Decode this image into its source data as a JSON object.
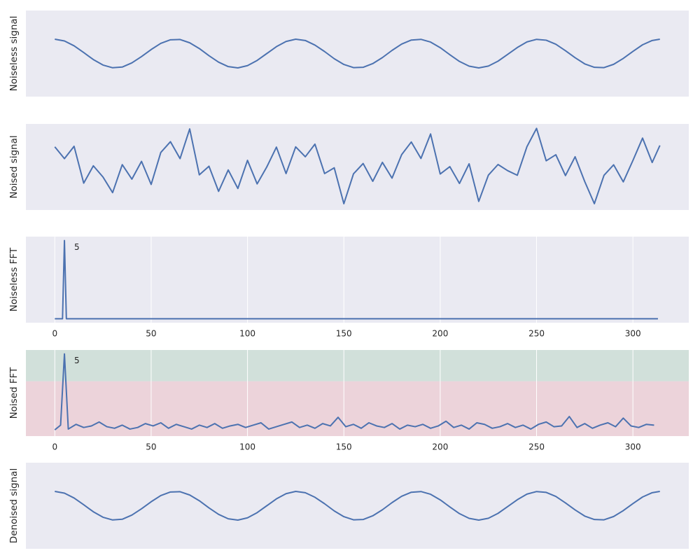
{
  "chart_data": [
    {
      "type": "line",
      "ylabel": "Noiseless signal",
      "color": "#4c72b0",
      "grid": false,
      "xlim": [
        -15,
        329
      ],
      "ylim": [
        -3,
        3
      ],
      "x": [
        0,
        5,
        10,
        15,
        20,
        25,
        30,
        35,
        40,
        45,
        50,
        55,
        60,
        65,
        70,
        75,
        80,
        85,
        90,
        95,
        100,
        105,
        110,
        115,
        120,
        125,
        130,
        135,
        140,
        145,
        150,
        155,
        160,
        165,
        170,
        175,
        180,
        185,
        190,
        195,
        200,
        205,
        210,
        215,
        220,
        225,
        230,
        235,
        240,
        245,
        250,
        255,
        260,
        265,
        270,
        275,
        280,
        285,
        290,
        295,
        300,
        305,
        310,
        314
      ],
      "values": [
        1,
        0.88,
        0.54,
        0.07,
        -0.42,
        -0.8,
        -0.99,
        -0.94,
        -0.65,
        -0.21,
        0.28,
        0.71,
        0.96,
        0.98,
        0.75,
        0.35,
        -0.15,
        -0.6,
        -0.91,
        -1,
        -0.84,
        -0.48,
        0,
        0.48,
        0.84,
        1,
        0.91,
        0.59,
        0.14,
        -0.36,
        -0.76,
        -0.98,
        -0.96,
        -0.7,
        -0.28,
        0.22,
        0.66,
        0.94,
        0.99,
        0.8,
        0.41,
        -0.08,
        -0.55,
        -0.88,
        -1,
        -0.87,
        -0.53,
        -0.06,
        0.42,
        0.81,
        0.99,
        0.93,
        0.65,
        0.2,
        -0.29,
        -0.72,
        -0.96,
        -0.98,
        -0.75,
        -0.34,
        0.15,
        0.61,
        0.91,
        1
      ]
    },
    {
      "type": "line",
      "ylabel": "Noised signal",
      "color": "#4c72b0",
      "grid": false,
      "xlim": [
        -15,
        329
      ],
      "ylim": [
        -3,
        3
      ],
      "x": [
        0,
        5,
        10,
        15,
        20,
        25,
        30,
        35,
        40,
        45,
        50,
        55,
        60,
        65,
        70,
        75,
        80,
        85,
        90,
        95,
        100,
        105,
        110,
        115,
        120,
        125,
        130,
        135,
        140,
        145,
        150,
        155,
        160,
        165,
        170,
        175,
        180,
        185,
        190,
        195,
        200,
        205,
        210,
        215,
        220,
        225,
        230,
        235,
        240,
        245,
        250,
        255,
        260,
        265,
        270,
        275,
        280,
        285,
        290,
        295,
        300,
        305,
        310,
        314
      ],
      "values": [
        1.4,
        0.58,
        1.44,
        -1.13,
        0.08,
        -0.7,
        -1.79,
        0.16,
        -0.85,
        0.39,
        -1.22,
        1.01,
        1.76,
        0.58,
        2.65,
        -0.55,
        0.05,
        -1.7,
        -0.21,
        -1.5,
        0.46,
        -1.18,
        0,
        1.38,
        -0.46,
        1.4,
        0.71,
        1.59,
        -0.46,
        -0.06,
        -2.56,
        -0.48,
        0.24,
        -1,
        0.32,
        -0.78,
        0.86,
        1.74,
        0.59,
        2.3,
        -0.49,
        0.02,
        -1.15,
        0.22,
        -2.4,
        -0.57,
        0.17,
        -0.26,
        -0.58,
        1.41,
        2.69,
        0.43,
        0.85,
        -0.6,
        0.71,
        -1.02,
        -2.56,
        -0.58,
        0.15,
        -1.04,
        0.45,
        2.01,
        0.31,
        1.5
      ]
    },
    {
      "type": "line",
      "ylabel": "Noiseless FFT",
      "color": "#4c72b0",
      "grid": true,
      "annotation": "5",
      "xlim": [
        -15,
        329
      ],
      "ylim": [
        -0.05,
        1.05
      ],
      "xticks": [
        0,
        50,
        100,
        150,
        200,
        250,
        300
      ],
      "x": [
        0,
        4,
        5,
        6,
        313
      ],
      "values": [
        0,
        0,
        1,
        0,
        0
      ]
    },
    {
      "type": "line",
      "ylabel": "Noised FFT",
      "color": "#4c72b0",
      "grid": true,
      "annotation": "5",
      "threshold": 0.65,
      "band_colors": [
        "#d1e0da",
        "#ecd3da"
      ],
      "xlim": [
        -15,
        329
      ],
      "ylim": [
        -0.05,
        1.05
      ],
      "xticks": [
        0,
        50,
        100,
        150,
        200,
        250,
        300
      ],
      "x": [
        0,
        3,
        5,
        7,
        11,
        15,
        19,
        23,
        27,
        31,
        35,
        39,
        43,
        47,
        51,
        55,
        59,
        63,
        67,
        71,
        75,
        79,
        83,
        87,
        91,
        95,
        99,
        103,
        107,
        111,
        115,
        119,
        123,
        127,
        131,
        135,
        139,
        143,
        147,
        151,
        155,
        159,
        163,
        167,
        171,
        175,
        179,
        183,
        187,
        191,
        195,
        199,
        203,
        207,
        211,
        215,
        219,
        223,
        227,
        231,
        235,
        239,
        243,
        247,
        251,
        255,
        259,
        263,
        267,
        271,
        275,
        279,
        283,
        287,
        291,
        295,
        299,
        303,
        307,
        311
      ],
      "values": [
        0.03,
        0.09,
        1,
        0.04,
        0.1,
        0.06,
        0.08,
        0.13,
        0.07,
        0.05,
        0.09,
        0.04,
        0.06,
        0.11,
        0.08,
        0.12,
        0.05,
        0.1,
        0.07,
        0.04,
        0.09,
        0.06,
        0.11,
        0.05,
        0.08,
        0.1,
        0.06,
        0.09,
        0.12,
        0.04,
        0.07,
        0.1,
        0.13,
        0.06,
        0.09,
        0.05,
        0.11,
        0.08,
        0.19,
        0.07,
        0.1,
        0.05,
        0.12,
        0.08,
        0.06,
        0.11,
        0.04,
        0.09,
        0.07,
        0.1,
        0.05,
        0.08,
        0.14,
        0.06,
        0.09,
        0.04,
        0.12,
        0.1,
        0.05,
        0.07,
        0.11,
        0.06,
        0.09,
        0.04,
        0.1,
        0.13,
        0.07,
        0.08,
        0.2,
        0.06,
        0.11,
        0.05,
        0.09,
        0.12,
        0.07,
        0.18,
        0.08,
        0.06,
        0.1,
        0.09
      ]
    },
    {
      "type": "line",
      "ylabel": "Denoised signal",
      "color": "#4c72b0",
      "grid": false,
      "xlim": [
        -15,
        329
      ],
      "ylim": [
        -3,
        3
      ],
      "x": [
        0,
        5,
        10,
        15,
        20,
        25,
        30,
        35,
        40,
        45,
        50,
        55,
        60,
        65,
        70,
        75,
        80,
        85,
        90,
        95,
        100,
        105,
        110,
        115,
        120,
        125,
        130,
        135,
        140,
        145,
        150,
        155,
        160,
        165,
        170,
        175,
        180,
        185,
        190,
        195,
        200,
        205,
        210,
        215,
        220,
        225,
        230,
        235,
        240,
        245,
        250,
        255,
        260,
        265,
        270,
        275,
        280,
        285,
        290,
        295,
        300,
        305,
        310,
        314
      ],
      "values": [
        1,
        0.88,
        0.54,
        0.07,
        -0.42,
        -0.8,
        -0.99,
        -0.94,
        -0.65,
        -0.21,
        0.28,
        0.71,
        0.96,
        0.98,
        0.75,
        0.35,
        -0.15,
        -0.6,
        -0.91,
        -1,
        -0.84,
        -0.48,
        0,
        0.48,
        0.84,
        1,
        0.91,
        0.59,
        0.14,
        -0.36,
        -0.76,
        -0.98,
        -0.96,
        -0.7,
        -0.28,
        0.22,
        0.66,
        0.94,
        0.99,
        0.8,
        0.41,
        -0.08,
        -0.55,
        -0.88,
        -1,
        -0.87,
        -0.53,
        -0.06,
        0.42,
        0.81,
        0.99,
        0.93,
        0.65,
        0.2,
        -0.29,
        -0.72,
        -0.96,
        -0.98,
        -0.75,
        -0.34,
        0.15,
        0.61,
        0.91,
        1
      ]
    }
  ]
}
